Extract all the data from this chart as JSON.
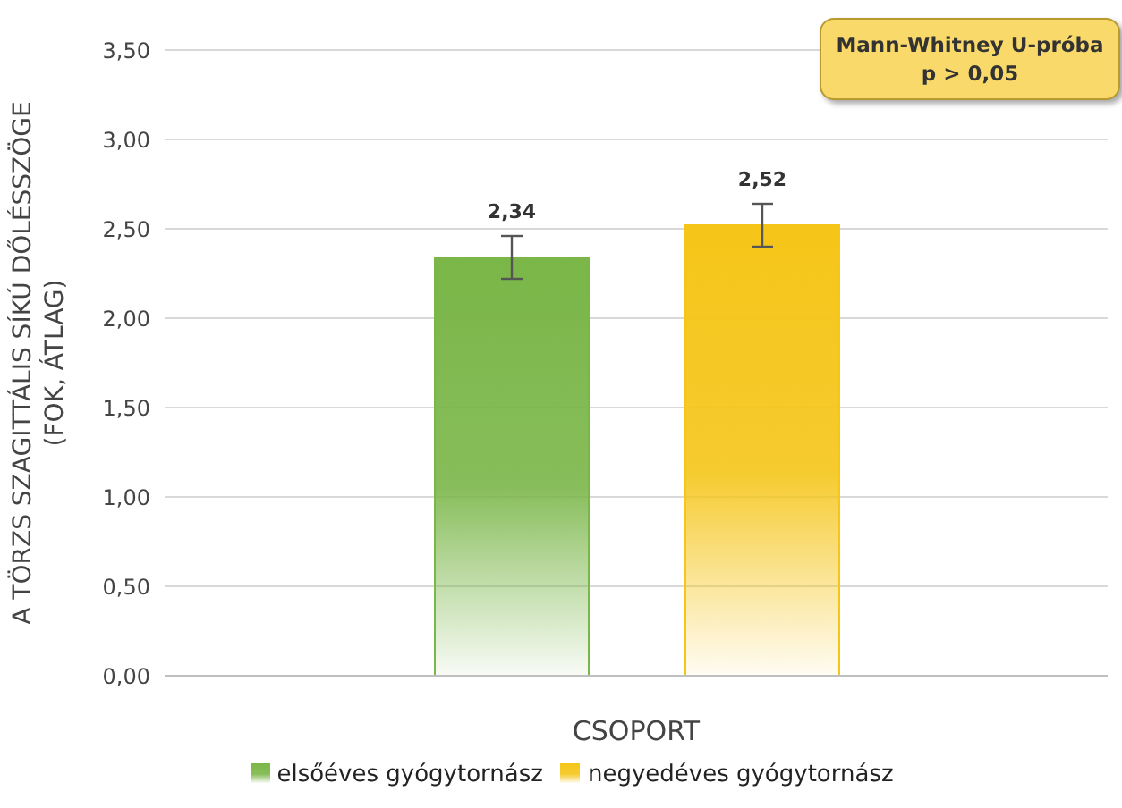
{
  "chart_data": {
    "type": "bar",
    "categories": [
      null
    ],
    "xlabel": "CSOPORT",
    "ylabel": "A TÖRZS SZAGITTÁLIS SÍKÚ DŐLÉSSZÖGE (FOK, ÁTLAG)",
    "series": [
      {
        "name": "elsőéves gyógytornász",
        "color": "#7ab648",
        "values": [
          2.34
        ],
        "errors": [
          0.12
        ],
        "value_labels": [
          "2,34"
        ]
      },
      {
        "name": "negyedéves gyógytornász",
        "color": "#f5c518",
        "values": [
          2.52
        ],
        "errors": [
          0.12
        ],
        "value_labels": [
          "2,52"
        ]
      }
    ],
    "ylim": [
      0,
      3.5
    ],
    "yticks": [
      {
        "value": 0,
        "label": "0,00"
      },
      {
        "value": 0.5,
        "label": "0,50"
      },
      {
        "value": 1,
        "label": "1,00"
      },
      {
        "value": 1.5,
        "label": "1,50"
      },
      {
        "value": 2,
        "label": "2,00"
      },
      {
        "value": 2.5,
        "label": "2,50"
      },
      {
        "value": 3,
        "label": "3,00"
      },
      {
        "value": 3.5,
        "label": "3,50"
      }
    ],
    "grid": "y",
    "legend": "bottom",
    "annotations": [
      "Mann-Whitney U-próba",
      "p > 0,05"
    ]
  }
}
